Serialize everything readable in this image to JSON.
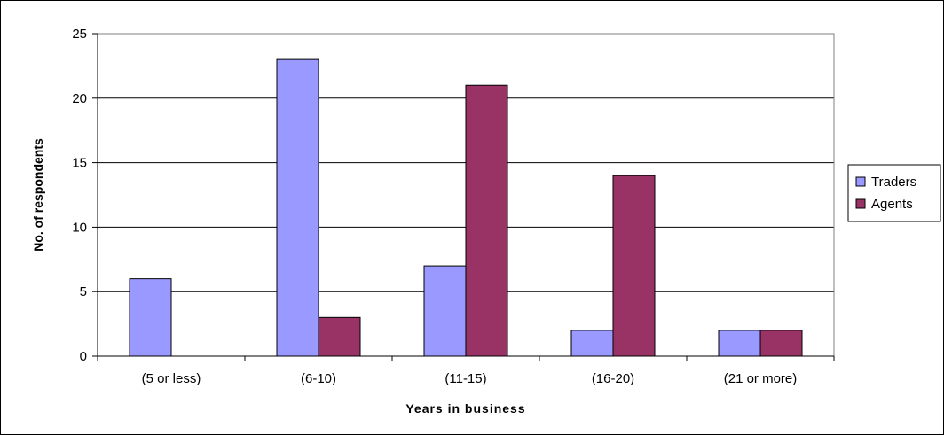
{
  "chart_data": {
    "type": "bar",
    "title": "",
    "categories": [
      "(5 or less)",
      "(6-10)",
      "(11-15)",
      "(16-20)",
      "(21 or more)"
    ],
    "series": [
      {
        "name": "Traders",
        "values": [
          6,
          23,
          7,
          2,
          2
        ],
        "color": "#9999ff"
      },
      {
        "name": "Agents",
        "values": [
          0,
          3,
          21,
          14,
          2
        ],
        "color": "#993366"
      }
    ],
    "xlabel": "Years in business",
    "ylabel": "No. of respondents",
    "ylim": [
      0,
      25
    ],
    "yticks": [
      "0",
      "5",
      "10",
      "15",
      "20",
      "25"
    ],
    "grid": true,
    "legend_position": "right",
    "plot_background": "#ffffff",
    "grid_color": "#000000"
  }
}
